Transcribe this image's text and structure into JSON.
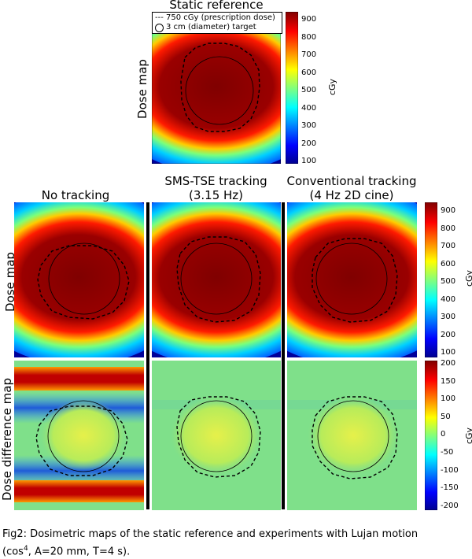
{
  "top": {
    "title": "Static reference",
    "row_label": "Dose map",
    "legend": {
      "dashed_label": "--- 750 cGy (prescription dose)",
      "circle_label": "3 cm (diameter) target"
    }
  },
  "columns": [
    {
      "title_line1": "No tracking",
      "title_line2": ""
    },
    {
      "title_line1": "SMS-TSE tracking",
      "title_line2": "(3.15 Hz)"
    },
    {
      "title_line1": "Conventional tracking",
      "title_line2": "(4 Hz 2D cine)"
    }
  ],
  "rows": {
    "dose": "Dose map",
    "difference": "Dose difference map"
  },
  "colorbars": {
    "dose": {
      "unit": "cGy",
      "ticks": [
        "900",
        "800",
        "700",
        "600",
        "500",
        "400",
        "300",
        "200",
        "100"
      ]
    },
    "dose_top": {
      "unit": "cGy",
      "ticks": [
        "900",
        "800",
        "700",
        "600",
        "500",
        "400",
        "300",
        "200",
        "100"
      ]
    },
    "difference": {
      "unit": "cGy",
      "ticks": [
        "200",
        "150",
        "100",
        "50",
        "0",
        "-50",
        "-100",
        "-150",
        "-200"
      ]
    }
  },
  "caption": {
    "line1": "Fig2: Dosimetric maps of the static reference and experiments with Lujan motion",
    "line2_pre": "(cos",
    "line2_sup": "4",
    "line2_post": ", A=20 mm, T=4 s)."
  },
  "colors": {
    "jet": [
      "#00008f",
      "#0000ff",
      "#00ffff",
      "#ffff00",
      "#ff0000",
      "#800000"
    ],
    "diff_background": "#7fe08a"
  }
}
